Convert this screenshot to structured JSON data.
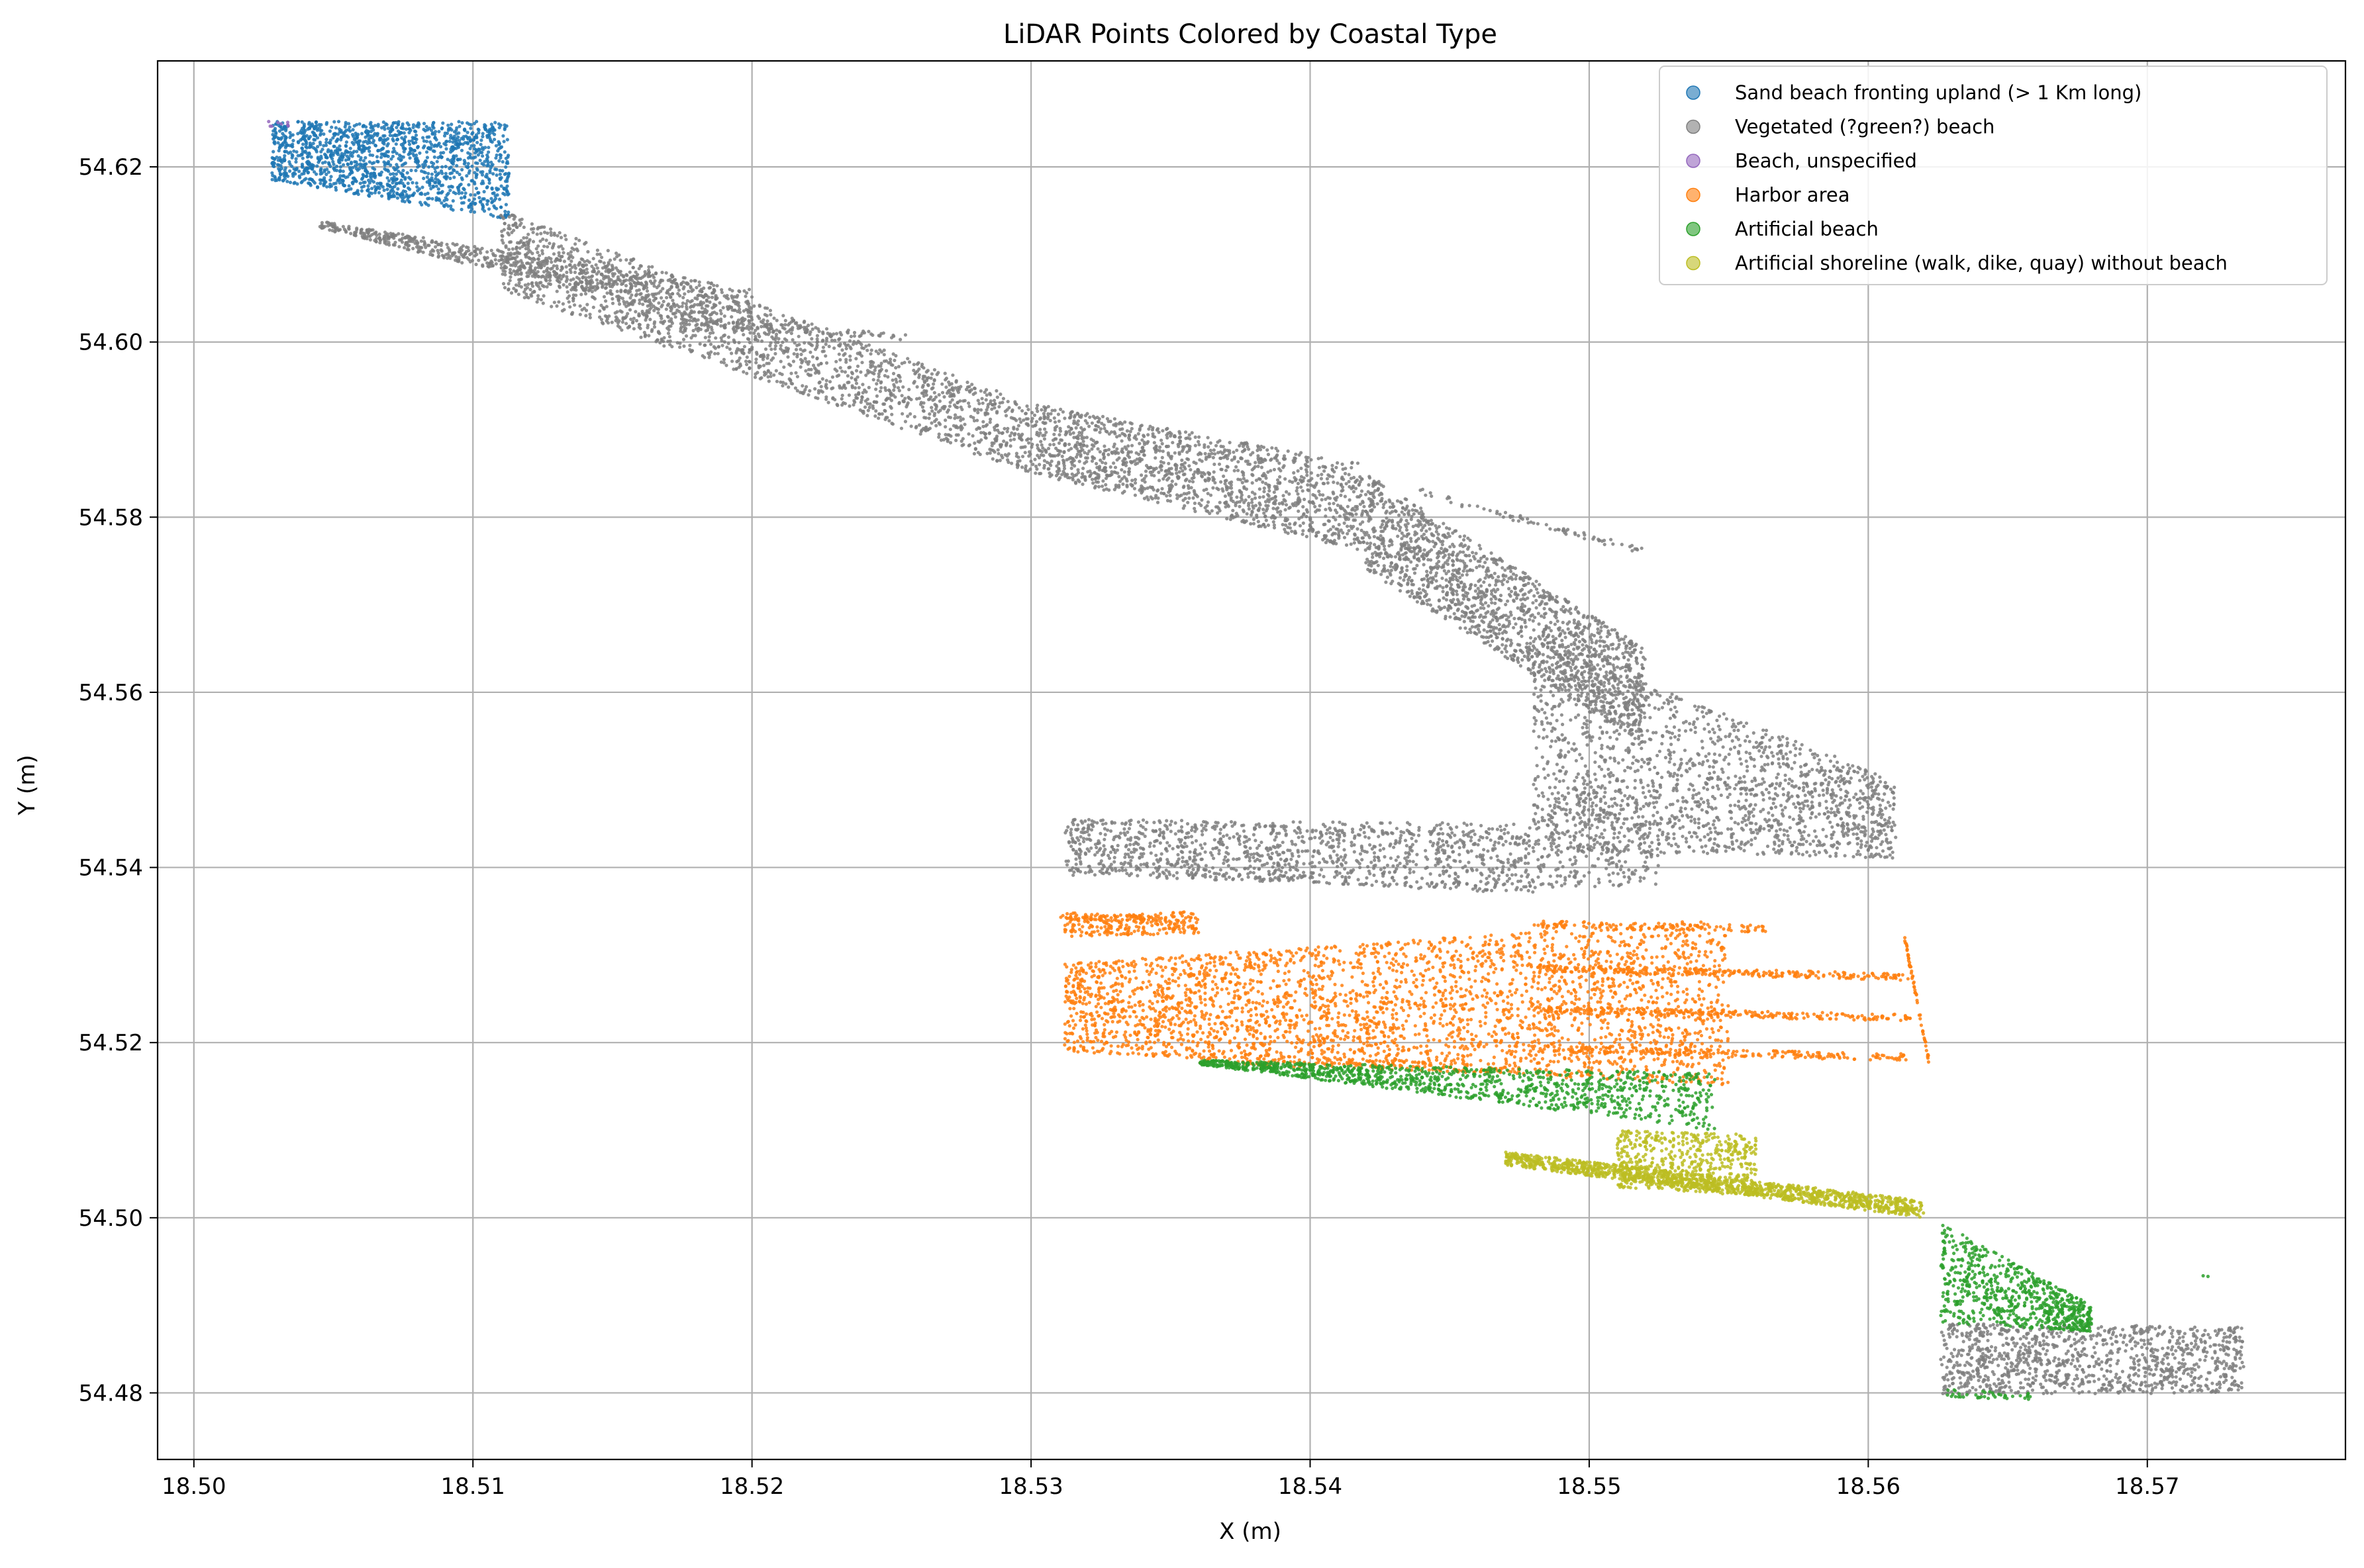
{
  "chart_data": {
    "type": "scatter",
    "title": "LiDAR Points Colored by Coastal Type",
    "xlabel": "X (m)",
    "ylabel": "Y (m)",
    "xlim": [
      18.4987,
      18.5771
    ],
    "ylim": [
      54.4724,
      54.6321
    ],
    "x_ticks": [
      18.5,
      18.51,
      18.52,
      18.53,
      18.54,
      18.55,
      18.56,
      18.57
    ],
    "x_tick_labels": [
      "18.50",
      "18.51",
      "18.52",
      "18.53",
      "18.54",
      "18.55",
      "18.56",
      "18.57"
    ],
    "y_ticks": [
      54.48,
      54.5,
      54.52,
      54.54,
      54.56,
      54.58,
      54.6,
      54.62
    ],
    "y_tick_labels": [
      "54.48",
      "54.50",
      "54.52",
      "54.54",
      "54.56",
      "54.58",
      "54.60",
      "54.62"
    ],
    "grid": true,
    "legend_position": "top-right",
    "series": [
      {
        "name": "Sand beach fronting upland (> 1 Km long)",
        "color": "#1f77b4",
        "regions": [
          {
            "x0": 18.5028,
            "x1": 18.5113,
            "yTop": [
              54.6252,
              54.6252
            ],
            "yBot": [
              54.6185,
              54.614
            ],
            "n": 1500
          }
        ],
        "stray": []
      },
      {
        "name": "Vegetated (?green?) beach",
        "color": "#7f7f7f",
        "regions": [
          {
            "x0": 18.5045,
            "x1": 18.52,
            "yTop": [
              54.6138,
              54.606
            ],
            "yBot": [
              54.613,
              54.601
            ],
            "n": 700
          },
          {
            "x0": 18.511,
            "x1": 18.53,
            "yTop": [
              54.615,
              54.593
            ],
            "yBot": [
              54.606,
              54.585
            ],
            "n": 1800
          },
          {
            "x0": 18.53,
            "x1": 18.542,
            "yTop": [
              54.593,
              54.586
            ],
            "yBot": [
              54.585,
              54.576
            ],
            "n": 1400
          },
          {
            "x0": 18.542,
            "x1": 18.552,
            "yTop": [
              54.585,
              54.565
            ],
            "yBot": [
              54.574,
              54.554
            ],
            "n": 1700
          },
          {
            "x0": 18.548,
            "x1": 18.561,
            "yTop": [
              54.566,
              54.55
            ],
            "yBot": [
              54.542,
              54.541
            ],
            "n": 1600
          },
          {
            "x0": 18.5312,
            "x1": 18.548,
            "yTop": [
              54.5455,
              54.545
            ],
            "yBot": [
              54.5395,
              54.537
            ],
            "n": 1200
          },
          {
            "x0": 18.548,
            "x1": 18.5525,
            "yTop": [
              54.549,
              54.548
            ],
            "yBot": [
              54.5375,
              54.538
            ],
            "n": 300
          },
          {
            "x0": 18.5626,
            "x1": 18.5735,
            "yTop": [
              54.488,
              54.4875
            ],
            "yBot": [
              54.4798,
              54.48
            ],
            "n": 1100
          }
        ],
        "stray": [
          [
            18.517,
            18.5255,
            54.6025,
            54.6005,
            90
          ],
          [
            18.5438,
            18.552,
            54.583,
            54.576,
            70
          ],
          [
            18.5312,
            18.5415,
            54.5395,
            54.5385,
            60
          ]
        ]
      },
      {
        "name": "Beach, unspecified",
        "color": "#9467bd",
        "regions": [],
        "stray": [
          [
            18.5022,
            18.5034,
            54.625,
            54.6248,
            8
          ]
        ]
      },
      {
        "name": "Harbor area",
        "color": "#ff7f0e",
        "regions": [
          {
            "x0": 18.5312,
            "x1": 18.536,
            "yTop": [
              54.5343,
              54.535
            ],
            "yBot": [
              54.532,
              54.5325
            ],
            "n": 220
          },
          {
            "x0": 18.5312,
            "x1": 18.555,
            "yTop": [
              54.529,
              54.5342
            ],
            "yBot": [
              54.519,
              54.515
            ],
            "n": 3000
          },
          {
            "x0": 18.536,
            "x1": 18.547,
            "yTop": [
              54.519,
              54.5175
            ],
            "yBot": [
              54.5175,
              54.5165
            ],
            "n": 150
          }
        ],
        "stray": [
          [
            18.548,
            18.5615,
            54.5285,
            54.5275,
            260
          ],
          [
            18.548,
            18.5615,
            54.5238,
            54.5228,
            240
          ],
          [
            18.548,
            18.5615,
            54.5193,
            54.5183,
            220
          ],
          [
            18.548,
            18.5565,
            54.5335,
            54.533,
            120
          ],
          [
            18.5613,
            18.5622,
            54.532,
            54.5175,
            60
          ],
          [
            18.531,
            18.5345,
            54.5345,
            54.534,
            60
          ]
        ]
      },
      {
        "name": "Artificial beach",
        "color": "#2ca02c",
        "regions": [
          {
            "x0": 18.536,
            "x1": 18.5545,
            "yTop": [
              54.518,
              54.5165
            ],
            "yBot": [
              54.5175,
              54.51
            ],
            "n": 1100
          },
          {
            "x0": 18.5626,
            "x1": 18.568,
            "yTop": [
              54.4995,
              54.49
            ],
            "yBot": [
              54.488,
              54.487
            ],
            "n": 700
          }
        ],
        "stray": [
          [
            18.5628,
            18.566,
            54.48,
            54.4795,
            40
          ],
          [
            18.572,
            18.5725,
            54.493,
            54.4928,
            2
          ]
        ]
      },
      {
        "name": "Artificial shoreline (walk, dike, quay) without beach",
        "color": "#bcbd22",
        "regions": [
          {
            "x0": 18.547,
            "x1": 18.562,
            "yTop": [
              54.5075,
              54.502
            ],
            "yBot": [
              54.506,
              54.5
            ],
            "n": 1300
          },
          {
            "x0": 18.551,
            "x1": 18.556,
            "yTop": [
              54.51,
              54.5095
            ],
            "yBot": [
              54.5035,
              54.5025
            ],
            "n": 500
          }
        ],
        "stray": []
      }
    ]
  }
}
